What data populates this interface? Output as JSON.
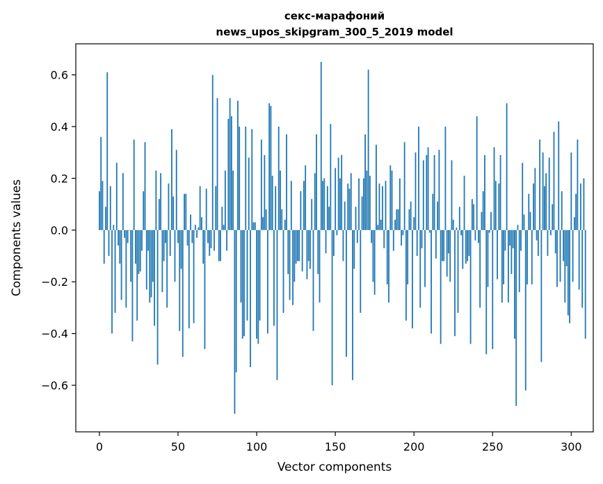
{
  "chart_data": {
    "type": "bar",
    "title_lines": [
      "секс-марафоний",
      "news_upos_skipgram_300_5_2019 model"
    ],
    "xlabel": "Vector components",
    "ylabel": "Components values",
    "xlim": [
      -15,
      314
    ],
    "ylim": [
      -0.78,
      0.72
    ],
    "xticks": [
      0,
      50,
      100,
      150,
      200,
      250,
      300
    ],
    "xtick_labels": [
      "0",
      "50",
      "100",
      "150",
      "200",
      "250",
      "300"
    ],
    "yticks": [
      -0.6,
      -0.4,
      -0.2,
      0.0,
      0.2,
      0.4,
      0.6
    ],
    "ytick_labels": [
      "−0.6",
      "−0.4",
      "−0.2",
      "0.0",
      "0.2",
      "0.4",
      "0.6"
    ],
    "grid": false,
    "bar_color": "#1f77b4",
    "x_start": 0,
    "values": [
      0.15,
      0.36,
      0.19,
      -0.13,
      0.09,
      0.61,
      -0.1,
      0.17,
      -0.4,
      0.02,
      -0.32,
      0.26,
      -0.06,
      -0.13,
      -0.27,
      0.22,
      -0.03,
      -0.3,
      -0.05,
      0.0,
      -0.2,
      -0.43,
      0.35,
      -0.13,
      -0.35,
      -0.17,
      -0.16,
      -0.08,
      0.15,
      0.34,
      -0.23,
      -0.08,
      -0.28,
      -0.26,
      -0.2,
      -0.37,
      0.23,
      -0.52,
      0.12,
      0.22,
      -0.24,
      -0.12,
      -0.05,
      -0.3,
      0.18,
      -0.1,
      0.39,
      0.13,
      -0.2,
      0.31,
      -0.05,
      -0.39,
      -0.15,
      -0.49,
      0.14,
      0.14,
      -0.06,
      -0.38,
      0.06,
      -0.05,
      -0.36,
      0.02,
      -0.03,
      0.01,
      0.17,
      0.05,
      -0.13,
      -0.46,
      0.16,
      -0.05,
      -0.1,
      -0.07,
      0.6,
      -0.08,
      0.17,
      0.51,
      -0.12,
      -0.12,
      0.09,
      0.02,
      0.23,
      -0.08,
      0.43,
      0.51,
      0.44,
      0.23,
      -0.71,
      -0.55,
      0.5,
      0.4,
      -0.28,
      -0.42,
      -0.41,
      0.4,
      -0.35,
      0.28,
      -0.53,
      0.39,
      0.03,
      0.03,
      -0.42,
      -0.44,
      -0.35,
      0.35,
      0.05,
      0.29,
      0.08,
      -0.4,
      0.49,
      0.48,
      0.21,
      -0.37,
      0.17,
      -0.58,
      0.4,
      0.23,
      0.08,
      -0.32,
      0.04,
      0.37,
      -0.17,
      -0.27,
      0.19,
      -0.29,
      -0.2,
      -0.13,
      -0.12,
      -0.12,
      0.15,
      -0.16,
      0.19,
      0.25,
      -0.19,
      -0.12,
      -0.15,
      0.12,
      -0.39,
      0.22,
      0.37,
      -0.17,
      -0.28,
      0.65,
      0.19,
      0.2,
      -0.09,
      0.17,
      0.09,
      0.41,
      -0.6,
      -0.1,
      0.24,
      -0.02,
      0.28,
      0.2,
      0.29,
      -0.12,
      0.11,
      -0.49,
      0.18,
      0.16,
      0.22,
      -0.58,
      -0.15,
      0.09,
      -0.05,
      0.2,
      -0.32,
      0.13,
      0.2,
      0.37,
      0.23,
      0.62,
      0.21,
      -0.05,
      -0.2,
      -0.25,
      0.33,
      0.02,
      0.18,
      0.04,
      0.17,
      -0.07,
      0.19,
      -0.21,
      -0.28,
      0.25,
      0.23,
      -0.08,
      0.04,
      0.08,
      0.08,
      0.2,
      -0.06,
      -0.02,
      0.34,
      -0.35,
      -0.21,
      0.08,
      0.11,
      -0.38,
      0.05,
      0.3,
      -0.1,
      0.4,
      -0.3,
      -0.07,
      0.27,
      -0.22,
      0.29,
      0.32,
      -0.01,
      -0.4,
      0.14,
      0.29,
      -0.11,
      0.11,
      0.31,
      -0.44,
      -0.12,
      -0.12,
      0.4,
      -0.18,
      -0.09,
      -0.2,
      0.27,
      0.04,
      -0.41,
      0.01,
      -0.32,
      0.09,
      -0.02,
      -0.15,
      0.21,
      -0.13,
      -0.12,
      -0.1,
      -0.44,
      0.12,
      0.1,
      -0.04,
      0.44,
      -0.05,
      -0.3,
      0.07,
      0.15,
      0.29,
      -0.48,
      -0.22,
      -0.01,
      0.07,
      -0.46,
      0.32,
      0.19,
      -0.19,
      0.18,
      0.29,
      -0.28,
      -0.21,
      -0.08,
      0.49,
      -0.28,
      -0.06,
      -0.17,
      -0.07,
      -0.42,
      -0.68,
      0.02,
      -0.24,
      -0.08,
      0.26,
      0.06,
      -0.62,
      -0.21,
      0.14,
      0.07,
      -0.21,
      0.18,
      0.24,
      -0.04,
      -0.1,
      0.35,
      -0.51,
      0.3,
      0.17,
      0.22,
      -0.1,
      0.28,
      -0.02,
      0.1,
      0.38,
      -0.09,
      -0.22,
      0.42,
      -0.2,
      0.15,
      -0.12,
      -0.28,
      -0.14,
      -0.33,
      -0.36,
      0.3,
      -0.2,
      0.05,
      0.14,
      0.35,
      -0.23,
      0.18,
      -0.3,
      0.2,
      -0.42
    ]
  }
}
